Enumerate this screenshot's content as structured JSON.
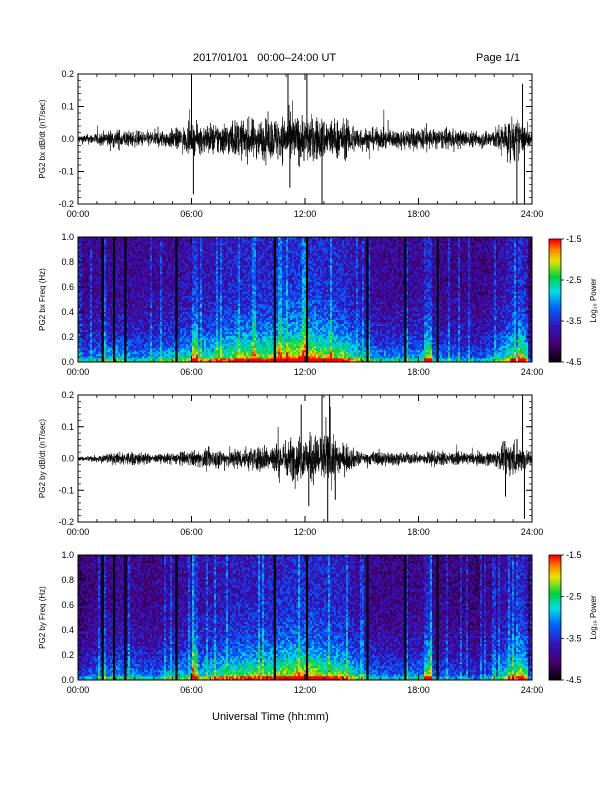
{
  "header": {
    "title": "2017/01/01   00:00–24:00 UT",
    "page": "Page 1/1"
  },
  "x_axis_title": "Universal Time (hh:mm)",
  "chart_data": [
    {
      "type": "line",
      "ylabel": "PG2 bx dB/dt (nT/sec)",
      "xlim": [
        0,
        24
      ],
      "ylim": [
        -0.2,
        0.2
      ],
      "xticks": [
        "00:00",
        "06:00",
        "12:00",
        "18:00",
        "24:00"
      ],
      "yticks": [
        "-0.2",
        "-0.1",
        "0.0",
        "0.1",
        "0.2"
      ],
      "envelope": {
        "hours": [
          0,
          1,
          2,
          3,
          4,
          5,
          6,
          7,
          8,
          9,
          10,
          11,
          12,
          13,
          14,
          15,
          16,
          17,
          18,
          19,
          20,
          21,
          22,
          23,
          24
        ],
        "amplitude": [
          0.02,
          0.03,
          0.05,
          0.04,
          0.04,
          0.05,
          0.07,
          0.08,
          0.09,
          0.1,
          0.1,
          0.12,
          0.12,
          0.11,
          0.1,
          0.06,
          0.05,
          0.05,
          0.06,
          0.05,
          0.05,
          0.04,
          0.05,
          0.12,
          0.03
        ]
      },
      "spikes": [
        {
          "x": 6.0,
          "y": 0.21
        },
        {
          "x": 6.1,
          "y": -0.17
        },
        {
          "x": 11.1,
          "y": 0.21
        },
        {
          "x": 11.2,
          "y": -0.15
        },
        {
          "x": 12.1,
          "y": 0.21
        },
        {
          "x": 12.9,
          "y": -0.21
        },
        {
          "x": 23.2,
          "y": -0.2
        },
        {
          "x": 23.5,
          "y": 0.17
        },
        {
          "x": 23.6,
          "y": -0.21
        }
      ]
    },
    {
      "type": "heatmap",
      "ylabel": "PG2 bx Freq (Hz)",
      "xlim": [
        0,
        24
      ],
      "ylim": [
        0,
        1
      ],
      "xticks": [
        "00:00",
        "06:00",
        "12:00",
        "18:00",
        "24:00"
      ],
      "yticks": [
        "0.0",
        "0.2",
        "0.4",
        "0.6",
        "0.8",
        "1.0"
      ],
      "colorbar": {
        "label": "Log₁₀ Power",
        "ticks": [
          "-1.5",
          "-2.5",
          "-3.5",
          "-4.5"
        ],
        "range": [
          -4.5,
          -1.5
        ]
      },
      "activity_hours": [
        0,
        1,
        2,
        3,
        4,
        5,
        6,
        7,
        8,
        9,
        10,
        11,
        12,
        13,
        14,
        15,
        16,
        17,
        18,
        19,
        20,
        21,
        22,
        23,
        24
      ],
      "activity": [
        0.35,
        0.45,
        0.55,
        0.45,
        0.45,
        0.55,
        0.6,
        0.65,
        0.75,
        0.8,
        0.8,
        0.9,
        0.95,
        0.85,
        0.8,
        0.55,
        0.45,
        0.45,
        0.5,
        0.45,
        0.4,
        0.35,
        0.45,
        0.75,
        0.2
      ],
      "gap_hours": [
        1.3,
        1.9,
        2.5,
        5.2,
        10.4,
        12.1,
        15.3,
        17.3,
        19.0
      ],
      "bright_bands": [
        {
          "x": 6.2,
          "w": 0.15
        },
        {
          "x": 18.5,
          "w": 0.2
        },
        {
          "x": 23.5,
          "w": 0.25
        }
      ]
    },
    {
      "type": "line",
      "ylabel": "PG2 by dB/dt (nT/sec)",
      "xlim": [
        0,
        24
      ],
      "ylim": [
        -0.2,
        0.2
      ],
      "xticks": [
        "00:00",
        "06:00",
        "12:00",
        "18:00",
        "24:00"
      ],
      "yticks": [
        "-0.2",
        "-0.1",
        "0.0",
        "0.1",
        "0.2"
      ],
      "envelope": {
        "hours": [
          0,
          1,
          2,
          3,
          4,
          5,
          6,
          7,
          8,
          9,
          10,
          11,
          12,
          13,
          14,
          15,
          16,
          17,
          18,
          19,
          20,
          21,
          22,
          23,
          24
        ],
        "amplitude": [
          0.01,
          0.02,
          0.03,
          0.04,
          0.02,
          0.03,
          0.04,
          0.05,
          0.05,
          0.06,
          0.07,
          0.1,
          0.12,
          0.13,
          0.08,
          0.03,
          0.04,
          0.03,
          0.03,
          0.04,
          0.03,
          0.03,
          0.04,
          0.1,
          0.03
        ]
      },
      "spikes": [
        {
          "x": 11.8,
          "y": 0.17
        },
        {
          "x": 12.2,
          "y": -0.15
        },
        {
          "x": 12.9,
          "y": 0.2
        },
        {
          "x": 13.2,
          "y": -0.21
        },
        {
          "x": 13.3,
          "y": 0.2
        },
        {
          "x": 13.6,
          "y": -0.13
        },
        {
          "x": 23.5,
          "y": 0.2
        },
        {
          "x": 23.6,
          "y": -0.19
        },
        {
          "x": 22.6,
          "y": -0.12
        }
      ]
    },
    {
      "type": "heatmap",
      "ylabel": "PG2 by Freq (Hz)",
      "xlim": [
        0,
        24
      ],
      "ylim": [
        0,
        1
      ],
      "xticks": [
        "00:00",
        "06:00",
        "12:00",
        "18:00",
        "24:00"
      ],
      "yticks": [
        "0.0",
        "0.2",
        "0.4",
        "0.6",
        "0.8",
        "1.0"
      ],
      "colorbar": {
        "label": "Log₁₀ Power",
        "ticks": [
          "-1.5",
          "-2.5",
          "-3.5",
          "-4.5"
        ],
        "range": [
          -4.5,
          -1.5
        ]
      },
      "activity_hours": [
        0,
        1,
        2,
        3,
        4,
        5,
        6,
        7,
        8,
        9,
        10,
        11,
        12,
        13,
        14,
        15,
        16,
        17,
        18,
        19,
        20,
        21,
        22,
        23,
        24
      ],
      "activity": [
        0.3,
        0.4,
        0.5,
        0.45,
        0.4,
        0.5,
        0.55,
        0.6,
        0.7,
        0.75,
        0.75,
        0.85,
        0.9,
        0.8,
        0.75,
        0.5,
        0.4,
        0.4,
        0.45,
        0.4,
        0.35,
        0.3,
        0.4,
        0.7,
        0.2
      ],
      "gap_hours": [
        1.3,
        1.9,
        2.5,
        5.2,
        10.4,
        12.1,
        15.3,
        17.3,
        19.0
      ],
      "bright_bands": [
        {
          "x": 6.2,
          "w": 0.15
        },
        {
          "x": 18.5,
          "w": 0.2
        },
        {
          "x": 23.5,
          "w": 0.25
        }
      ]
    }
  ]
}
